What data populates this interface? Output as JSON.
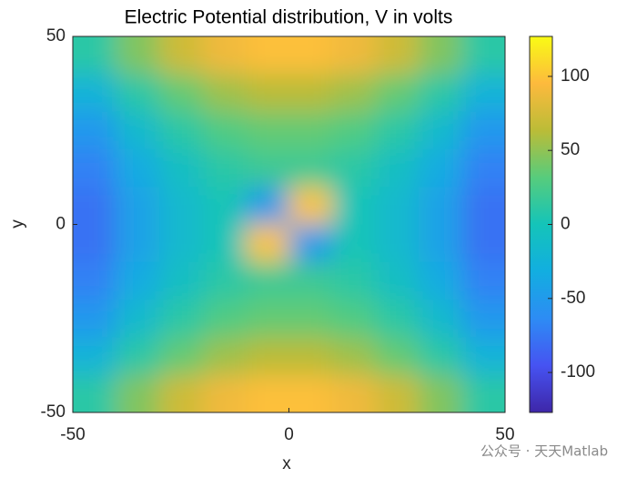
{
  "chart_data": {
    "type": "heatmap",
    "title": "Electric Potential distribution, V in volts",
    "x_label": "x",
    "y_label": "y",
    "x": [
      -45,
      -35,
      -25,
      -15,
      -5,
      5,
      15,
      25,
      35,
      45
    ],
    "y": [
      45,
      35,
      25,
      15,
      5,
      -5,
      -15,
      -25,
      -35,
      -45
    ],
    "values": [
      [
        10,
        45,
        72,
        89,
        98,
        98,
        89,
        72,
        45,
        10
      ],
      [
        -25,
        10,
        36,
        54,
        63,
        63,
        54,
        36,
        10,
        -25
      ],
      [
        -52,
        -16,
        10,
        28,
        36,
        36,
        28,
        10,
        -16,
        -52
      ],
      [
        -69,
        -34,
        -8,
        10,
        19,
        19,
        10,
        -8,
        -34,
        -69
      ],
      [
        -78,
        -43,
        -16,
        1,
        -50,
        100,
        1,
        -16,
        -43,
        -78
      ],
      [
        -78,
        -43,
        -16,
        1,
        100,
        -50,
        1,
        -16,
        -43,
        -78
      ],
      [
        -69,
        -34,
        -8,
        10,
        19,
        19,
        10,
        -8,
        -34,
        -69
      ],
      [
        -52,
        -16,
        10,
        28,
        36,
        36,
        28,
        10,
        -16,
        -52
      ],
      [
        -25,
        10,
        36,
        54,
        63,
        63,
        54,
        36,
        10,
        -25
      ],
      [
        10,
        45,
        72,
        89,
        98,
        98,
        89,
        72,
        45,
        10
      ]
    ],
    "xlim": [
      -50,
      50
    ],
    "ylim": [
      -50,
      50
    ],
    "xticks": [
      -50,
      0,
      50
    ],
    "yticks": [
      -50,
      0,
      50
    ],
    "clim": [
      -127,
      127
    ],
    "cticks": [
      -100,
      -50,
      0,
      50,
      100
    ],
    "colormap": [
      "#3e26a8",
      "#4653f2",
      "#2d8cf4",
      "#12aee0",
      "#14c4b9",
      "#57cc7c",
      "#bbbc37",
      "#fdba3d",
      "#f9fb15"
    ],
    "watermark": "公众号 · 天天Matlab"
  }
}
